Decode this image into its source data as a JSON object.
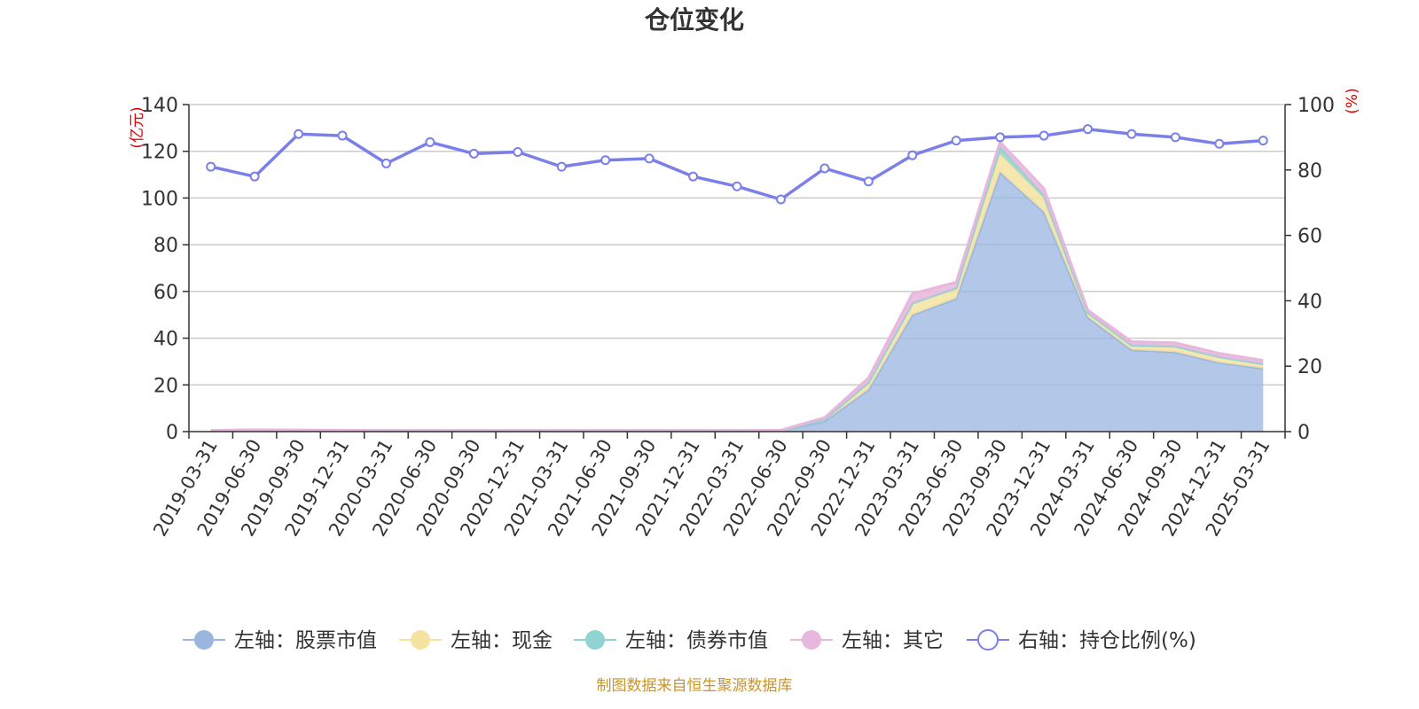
{
  "chart_data": {
    "type": "area",
    "title": "仓位变化",
    "left_axis_unit": "(亿元)",
    "right_axis_unit": "(%)",
    "ylim_left": [
      0,
      140
    ],
    "ylim_right": [
      0,
      100
    ],
    "yticks_left": [
      0,
      20,
      40,
      60,
      80,
      100,
      120,
      140
    ],
    "yticks_right": [
      0,
      20,
      40,
      60,
      80,
      100
    ],
    "grid": true,
    "legend_position": "bottom",
    "categories": [
      "2019-03-31",
      "2019-06-30",
      "2019-09-30",
      "2019-12-31",
      "2020-03-31",
      "2020-06-30",
      "2020-09-30",
      "2020-12-31",
      "2021-03-31",
      "2021-06-30",
      "2021-09-30",
      "2021-12-31",
      "2022-03-31",
      "2022-06-30",
      "2022-09-30",
      "2022-12-31",
      "2023-03-31",
      "2023-06-30",
      "2023-09-30",
      "2023-12-31",
      "2024-03-31",
      "2024-06-30",
      "2024-09-30",
      "2024-12-31",
      "2025-03-31"
    ],
    "series": [
      {
        "name": "左轴：股票市值",
        "axis": "left",
        "color": "#9ab5e0",
        "stack": true,
        "values": [
          0.3,
          0.6,
          0.5,
          0.4,
          0.3,
          0.3,
          0.3,
          0.3,
          0.3,
          0.3,
          0.3,
          0.3,
          0.3,
          0.4,
          4.5,
          18,
          50,
          57,
          111,
          94,
          49,
          35,
          34,
          29.5,
          27
        ]
      },
      {
        "name": "左轴：现金",
        "axis": "left",
        "color": "#f5e3a1",
        "stack": true,
        "values": [
          0.1,
          0.1,
          0.1,
          0.1,
          0.1,
          0.1,
          0.1,
          0.1,
          0.1,
          0.1,
          0.1,
          0.1,
          0.1,
          0.1,
          0.8,
          3,
          5,
          4.5,
          8,
          6,
          2,
          2,
          2.5,
          2.5,
          2
        ]
      },
      {
        "name": "左轴：债券市值",
        "axis": "left",
        "color": "#8fd3d3",
        "stack": true,
        "values": [
          0,
          0,
          0,
          0,
          0,
          0,
          0,
          0,
          0,
          0,
          0,
          0,
          0,
          0,
          0,
          0,
          0,
          0,
          3,
          1,
          0,
          0,
          0,
          0,
          0
        ]
      },
      {
        "name": "左轴：其它",
        "axis": "left",
        "color": "#e8b7dd",
        "stack": true,
        "values": [
          0.1,
          0.1,
          0.1,
          0.1,
          0.1,
          0.1,
          0.1,
          0.1,
          0.1,
          0.1,
          0.1,
          0.1,
          0.1,
          0.1,
          0.7,
          2,
          4,
          2.5,
          2,
          3,
          1,
          1.5,
          1.5,
          1.5,
          1.5
        ]
      },
      {
        "name": "右轴：持仓比例(%)",
        "axis": "right",
        "color": "#7b7fe8",
        "type": "line",
        "values": [
          81,
          78,
          91,
          90.5,
          82,
          88.5,
          85,
          85.5,
          81,
          83,
          83.5,
          78,
          75,
          71,
          80.5,
          76.5,
          84.5,
          89,
          90,
          90.5,
          92.5,
          91,
          90,
          88,
          89
        ]
      }
    ]
  },
  "footer": {
    "source": "制图数据来自恒生聚源数据库"
  }
}
